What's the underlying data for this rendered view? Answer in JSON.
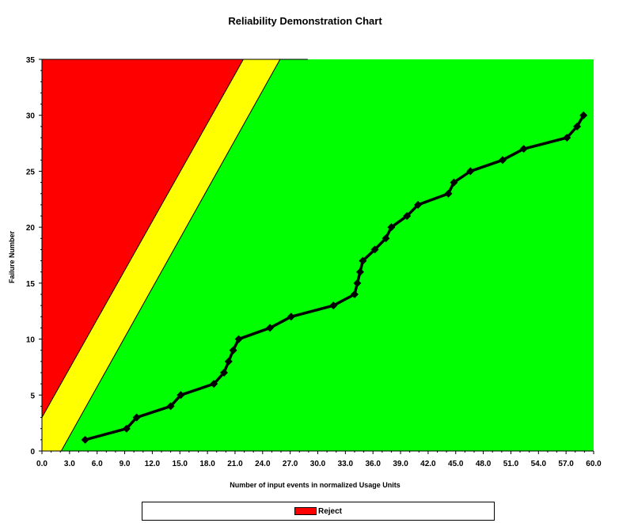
{
  "chart_data": {
    "type": "line",
    "title": "Reliability Demonstration Chart",
    "xlabel": "Number of input events in normalized Usage Units",
    "ylabel": "Failure Number",
    "xlim": [
      0,
      60
    ],
    "ylim": [
      0,
      35
    ],
    "x_ticks": [
      "0.0",
      "3.0",
      "6.0",
      "9.0",
      "12.0",
      "15.0",
      "18.0",
      "21.0",
      "24.0",
      "27.0",
      "30.0",
      "33.0",
      "36.0",
      "39.0",
      "42.0",
      "45.0",
      "48.0",
      "51.0",
      "54.0",
      "57.0",
      "60.0"
    ],
    "y_ticks": [
      "0",
      "5",
      "10",
      "15",
      "20",
      "25",
      "30",
      "35"
    ],
    "grid": false,
    "regions": {
      "reject": {
        "color": "#ff0000",
        "boundary": [
          [
            0,
            3
          ],
          [
            21.9,
            35
          ]
        ]
      },
      "continue": {
        "color": "#ffff00",
        "boundary": [
          [
            2.1,
            0
          ],
          [
            25.9,
            35
          ]
        ]
      },
      "accept": {
        "color": "#00ff00"
      }
    },
    "series": [
      {
        "color": "#000000",
        "x": [
          4.7,
          9.2,
          10.3,
          14.0,
          15.1,
          18.7,
          19.8,
          20.3,
          20.8,
          21.4,
          24.8,
          27.1,
          31.7,
          34.0,
          34.3,
          34.6,
          34.9,
          36.2,
          37.4,
          38.0,
          39.7,
          40.9,
          44.2,
          44.8,
          46.6,
          50.1,
          52.4,
          57.1,
          58.2,
          58.9
        ],
        "values": [
          1,
          2,
          3,
          4,
          5,
          6,
          7,
          8,
          9,
          10,
          11,
          12,
          13,
          14,
          15,
          16,
          17,
          18,
          19,
          20,
          21,
          22,
          23,
          24,
          25,
          26,
          27,
          28,
          29,
          30
        ]
      }
    ],
    "legend": {
      "position": "bottom",
      "entries": [
        {
          "label": "Reject",
          "color": "#ff0000"
        }
      ]
    }
  }
}
